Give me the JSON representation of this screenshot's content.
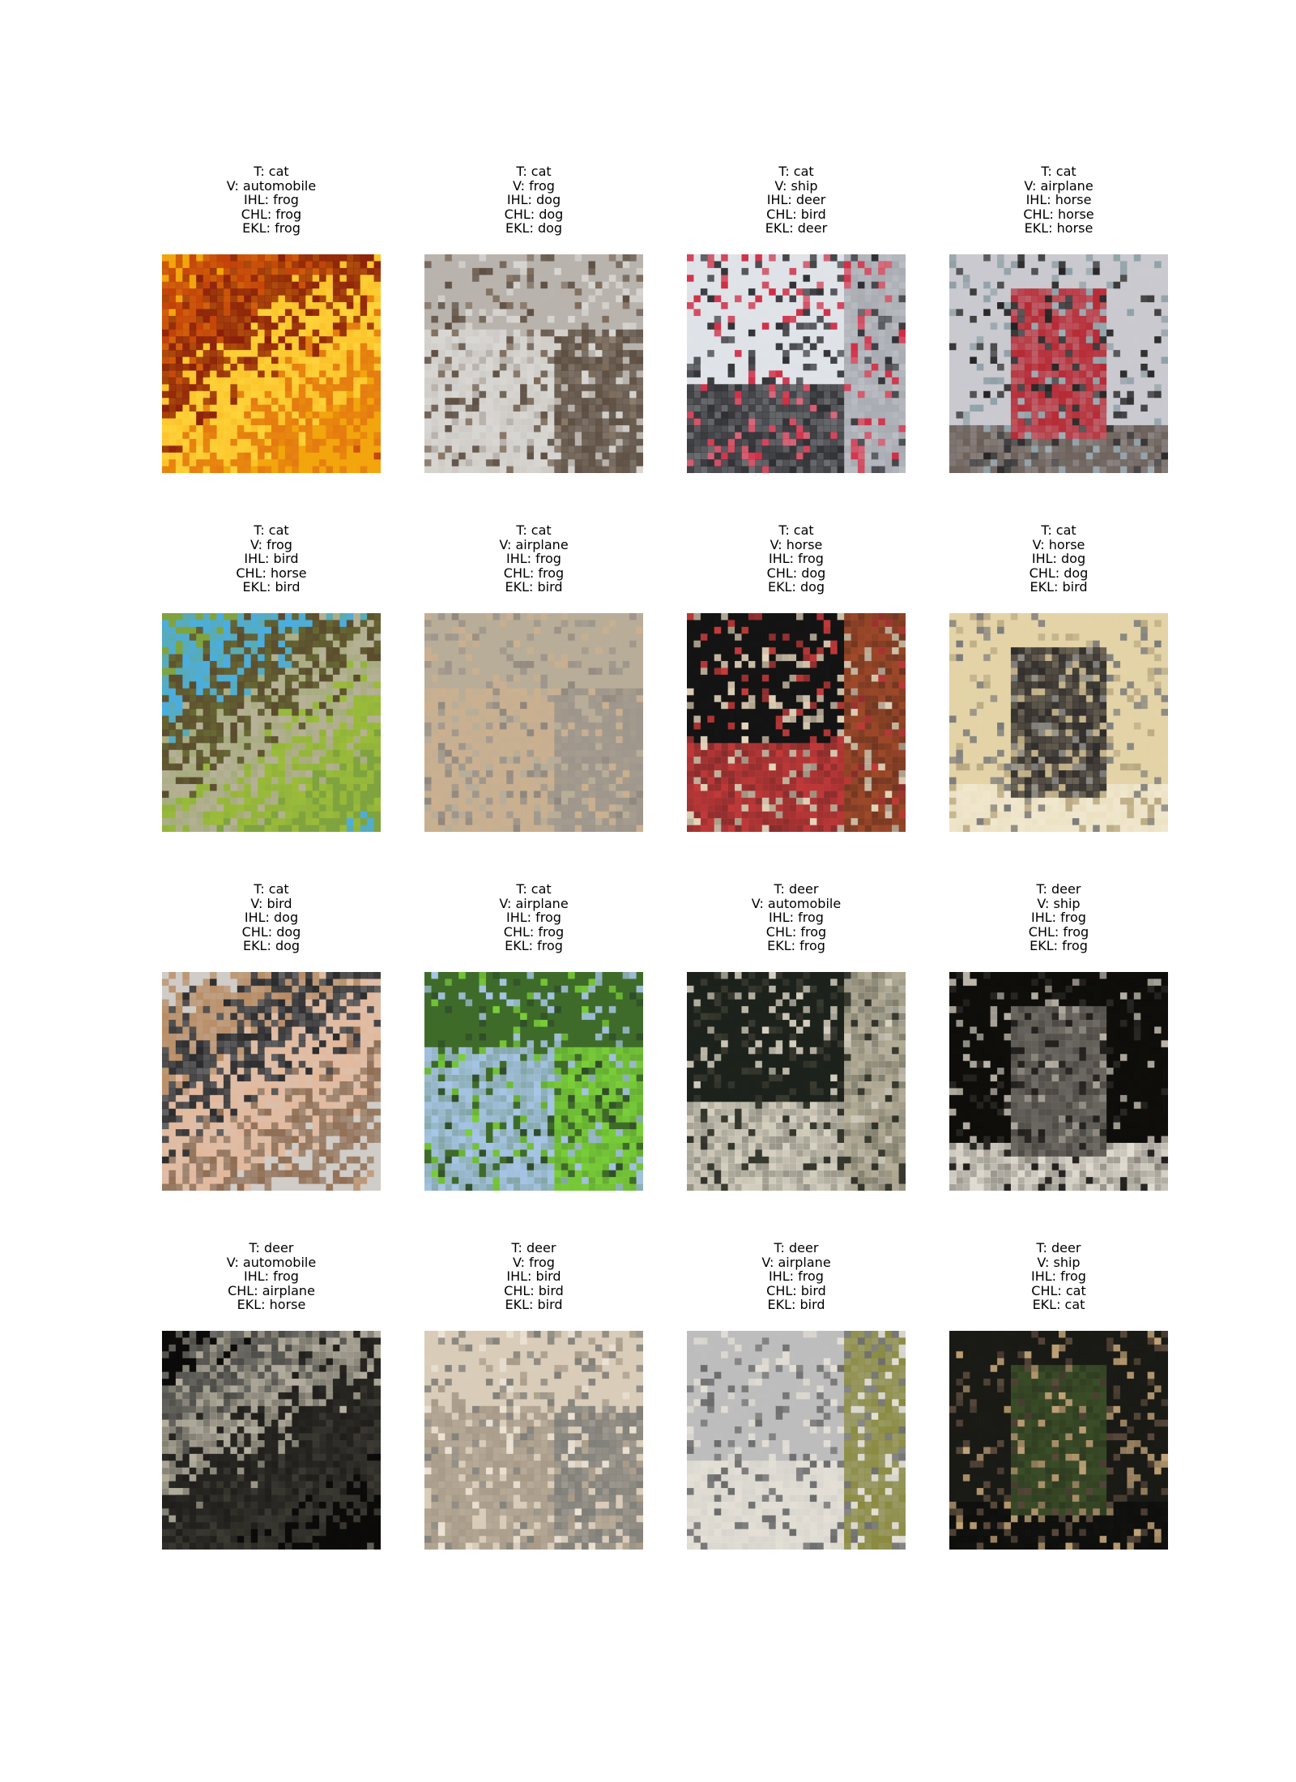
{
  "figure": {
    "panels": [
      {
        "T": "T: cat",
        "V": "V: automobile",
        "IHL": "IHL: frog",
        "CHL": "CHL: frog",
        "EKL": "EKL: frog",
        "palette": [
          "#f2a50d",
          "#c1410a",
          "#8a1f0a",
          "#ffd23a",
          "#e47a10"
        ],
        "image": "orange-yellow-texture"
      },
      {
        "T": "T: cat",
        "V": "V: frog",
        "IHL": "IHL: dog",
        "CHL": "CHL: dog",
        "EKL": "EKL: dog",
        "palette": [
          "#b9b3ad",
          "#5d4f42",
          "#d9d7d3",
          "#7c6a58",
          "#8e8a86"
        ],
        "image": "cat-closeup"
      },
      {
        "T": "T: cat",
        "V": "V: ship",
        "IHL": "IHL: deer",
        "CHL": "CHL: bird",
        "EKL": "EKL: deer",
        "palette": [
          "#dfe3e8",
          "#a7aab0",
          "#cf2d45",
          "#2f2f33",
          "#9b8f93"
        ],
        "image": "beach-banner"
      },
      {
        "T": "T: cat",
        "V": "V: airplane",
        "IHL": "IHL: horse",
        "CHL": "CHL: horse",
        "EKL": "EKL: horse",
        "palette": [
          "#c9c9cf",
          "#b62a35",
          "#232323",
          "#8ea0a6",
          "#6a5e57"
        ],
        "image": "person-on-beach"
      },
      {
        "T": "T: cat",
        "V": "V: frog",
        "IHL": "IHL: bird",
        "CHL": "CHL: horse",
        "EKL": "EKL: bird",
        "palette": [
          "#7fa33f",
          "#4aaee5",
          "#5a4a2e",
          "#b8b19a",
          "#9cbc3a"
        ],
        "image": "frog-on-green"
      },
      {
        "T": "T: cat",
        "V": "V: airplane",
        "IHL": "IHL: frog",
        "CHL": "CHL: frog",
        "EKL": "EKL: bird",
        "palette": [
          "#b8ad98",
          "#9d958b",
          "#cbb08f",
          "#8e857c",
          "#d6c1a4"
        ],
        "image": "lizard-on-rock"
      },
      {
        "T": "T: cat",
        "V": "V: horse",
        "IHL": "IHL: frog",
        "CHL": "CHL: dog",
        "EKL": "EKL: dog",
        "palette": [
          "#141414",
          "#a14a2a",
          "#e7d7bd",
          "#c43a3a",
          "#2f2a27"
        ],
        "image": "black-cat-flower"
      },
      {
        "T": "T: cat",
        "V": "V: horse",
        "IHL": "IHL: dog",
        "CHL": "CHL: dog",
        "EKL": "EKL: bird",
        "palette": [
          "#e3d3a7",
          "#2e2b2b",
          "#7a7a7a",
          "#b9a983",
          "#f0e7cf"
        ],
        "image": "dog-on-sand"
      },
      {
        "T": "T: cat",
        "V": "V: bird",
        "IHL": "IHL: dog",
        "CHL": "CHL: dog",
        "EKL": "EKL: dog",
        "palette": [
          "#d0ccc7",
          "#b78b63",
          "#2a2a2d",
          "#e3b89b",
          "#8f6d52"
        ],
        "image": "puppy-and-person"
      },
      {
        "T": "T: cat",
        "V": "V: airplane",
        "IHL": "IHL: frog",
        "CHL": "CHL: frog",
        "EKL": "EKL: frog",
        "palette": [
          "#3f6b2a",
          "#7bd03a",
          "#a8c6e8",
          "#2f4b2b",
          "#cfd3d6"
        ],
        "image": "green-valley"
      },
      {
        "T": "T: deer",
        "V": "V: automobile",
        "IHL": "IHL: frog",
        "CHL": "CHL: frog",
        "EKL": "EKL: frog",
        "palette": [
          "#1d221c",
          "#b7b09a",
          "#3a3b31",
          "#d8d2c2",
          "#0e1610"
        ],
        "image": "stone-bridge"
      },
      {
        "T": "T: deer",
        "V": "V: ship",
        "IHL": "IHL: frog",
        "CHL": "CHL: frog",
        "EKL": "EKL: frog",
        "palette": [
          "#0f0e0b",
          "#6f6b65",
          "#bdb7ac",
          "#2a2825",
          "#e3ded3"
        ],
        "image": "dark-speckles"
      },
      {
        "T": "T: deer",
        "V": "V: automobile",
        "IHL": "IHL: frog",
        "CHL": "CHL: airplane",
        "EKL": "EKL: horse",
        "palette": [
          "#0c0b0a",
          "#6b6a64",
          "#b5b0a0",
          "#2a2824",
          "#3c3a33"
        ],
        "image": "night-streaks"
      },
      {
        "T": "T: deer",
        "V": "V: frog",
        "IHL": "IHL: bird",
        "CHL": "CHL: bird",
        "EKL": "EKL: bird",
        "palette": [
          "#d9ccb9",
          "#7f7e78",
          "#a79a88",
          "#ece3d6",
          "#6b5f55"
        ],
        "image": "grey-bird"
      },
      {
        "T": "T: deer",
        "V": "V: airplane",
        "IHL": "IHL: frog",
        "CHL": "CHL: bird",
        "EKL": "EKL: bird",
        "palette": [
          "#bdbdbd",
          "#8a8a3f",
          "#6b6b6b",
          "#e4e0d6",
          "#3b3b3b"
        ],
        "image": "hedgehog-grass"
      },
      {
        "T": "T: deer",
        "V": "V: ship",
        "IHL": "IHL: frog",
        "CHL": "CHL: cat",
        "EKL": "EKL: cat",
        "palette": [
          "#1a1a16",
          "#3b4e28",
          "#c1a377",
          "#5a4a3c",
          "#0e0f0d"
        ],
        "image": "cat-in-foliage"
      }
    ]
  }
}
